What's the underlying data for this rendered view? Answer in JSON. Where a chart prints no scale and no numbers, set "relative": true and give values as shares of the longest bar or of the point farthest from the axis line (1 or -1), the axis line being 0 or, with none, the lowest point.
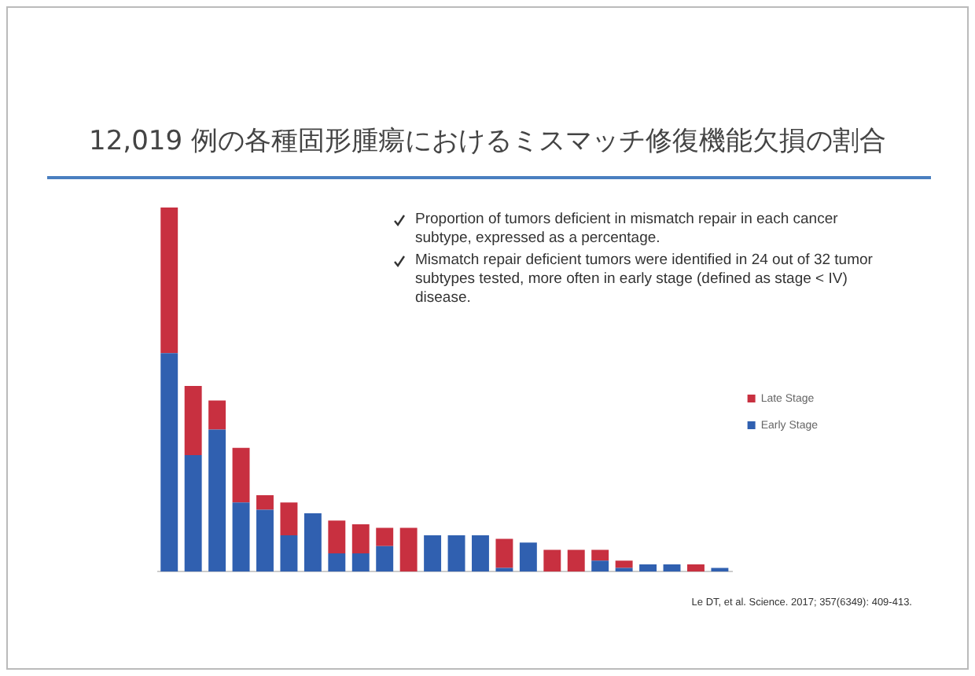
{
  "chart_data": {
    "type": "bar",
    "title": "12,019 例の各種固形腫瘍におけるミスマッチ修復機能欠損の割合",
    "stacked": true,
    "relative": true,
    "legend": "right",
    "grid": false,
    "categories": [
      null,
      null,
      null,
      null,
      null,
      null,
      null,
      null,
      null,
      null,
      null,
      null,
      null,
      null,
      null,
      null,
      null,
      null,
      null,
      null,
      null,
      null,
      null,
      null
    ],
    "series": [
      {
        "name": "Early Stage",
        "color": "#3060b0",
        "values": [
          0.6,
          0.32,
          0.39,
          0.19,
          0.17,
          0.1,
          0.16,
          0.05,
          0.05,
          0.07,
          0,
          0.1,
          0.1,
          0.1,
          0.01,
          0.08,
          0,
          0,
          0.03,
          0.01,
          0.02,
          0.02,
          0,
          0.01
        ]
      },
      {
        "name": "Late Stage",
        "color": "#c83040",
        "values": [
          0.4,
          0.19,
          0.08,
          0.15,
          0.04,
          0.09,
          0,
          0.09,
          0.08,
          0.05,
          0.12,
          0,
          0,
          0,
          0.08,
          0,
          0.06,
          0.06,
          0.03,
          0.02,
          0,
          0,
          0.02,
          0
        ]
      }
    ],
    "annotations": [
      "Proportion of tumors deficient in mismatch repair in each cancer subtype, expressed as a percentage.",
      "Mismatch repair deficient tumors were identified in 24 out of 32 tumor subtypes tested, more often in early stage (defined as stage < IV) disease.",
      "Le DT, et al. Science. 2017; 357(6349): 409-413."
    ]
  }
}
